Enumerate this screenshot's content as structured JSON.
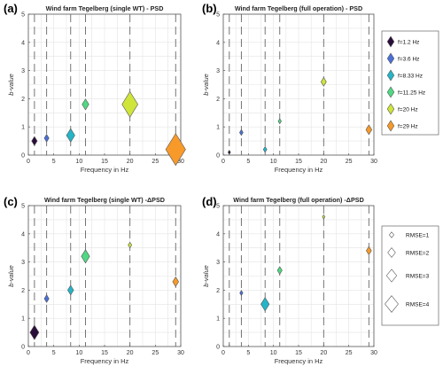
{
  "chart_data": [
    {
      "type": "scatter",
      "panel_label": "(a)",
      "title": "Wind farm Tegelberg (single WT) - PSD",
      "xlabel": "Frequency in Hz",
      "ylabel": "b-value",
      "xlim": [
        0,
        30
      ],
      "ylim": [
        0,
        5
      ],
      "xticks": [
        0,
        5,
        10,
        15,
        20,
        25,
        30
      ],
      "yticks": [
        0,
        1,
        2,
        3,
        4,
        5
      ],
      "grid": true,
      "marker": "diamond",
      "points": [
        {
          "x": 1.2,
          "y": 0.5,
          "size": 0.28,
          "color": "#2a0e3a"
        },
        {
          "x": 3.6,
          "y": 0.6,
          "size": 0.24,
          "color": "#4a6fd8"
        },
        {
          "x": 8.33,
          "y": 0.7,
          "size": 0.42,
          "color": "#24b5c8"
        },
        {
          "x": 11.25,
          "y": 1.8,
          "size": 0.34,
          "color": "#4fd982"
        },
        {
          "x": 20,
          "y": 1.8,
          "size": 0.8,
          "color": "#cfe53a"
        },
        {
          "x": 29,
          "y": 0.2,
          "size": 1.0,
          "color": "#f79a2a"
        }
      ]
    },
    {
      "type": "scatter",
      "panel_label": "(b)",
      "title": "Wind farm Tegelberg (full operation) - PSD",
      "xlabel": "Frequency in Hz",
      "ylabel": "b-value",
      "xlim": [
        0,
        30
      ],
      "ylim": [
        0,
        5
      ],
      "xticks": [
        0,
        5,
        10,
        15,
        20,
        25,
        30
      ],
      "yticks": [
        0,
        1,
        2,
        3,
        4,
        5
      ],
      "grid": true,
      "marker": "diamond",
      "points": [
        {
          "x": 1.2,
          "y": 0.1,
          "size": 0.13,
          "color": "#2a0e3a"
        },
        {
          "x": 3.6,
          "y": 0.8,
          "size": 0.18,
          "color": "#4a6fd8"
        },
        {
          "x": 8.33,
          "y": 0.2,
          "size": 0.18,
          "color": "#24b5c8"
        },
        {
          "x": 11.25,
          "y": 1.2,
          "size": 0.16,
          "color": "#4fd982"
        },
        {
          "x": 20,
          "y": 2.6,
          "size": 0.27,
          "color": "#cfe53a"
        },
        {
          "x": 29,
          "y": 0.9,
          "size": 0.3,
          "color": "#f79a2a"
        }
      ]
    },
    {
      "type": "scatter",
      "panel_label": "(c)",
      "title": "Wind farm Tegelberg (single WT) -ΔPSD",
      "xlabel": "Frequency in Hz",
      "ylabel": "b-value",
      "xlim": [
        0,
        30
      ],
      "ylim": [
        0,
        5
      ],
      "xticks": [
        0,
        5,
        10,
        15,
        20,
        25,
        30
      ],
      "yticks": [
        0,
        1,
        2,
        3,
        4,
        5
      ],
      "grid": true,
      "marker": "diamond",
      "points": [
        {
          "x": 1.2,
          "y": 0.5,
          "size": 0.45,
          "color": "#2a0e3a"
        },
        {
          "x": 3.6,
          "y": 1.7,
          "size": 0.24,
          "color": "#4a6fd8"
        },
        {
          "x": 8.33,
          "y": 2.0,
          "size": 0.3,
          "color": "#24b5c8"
        },
        {
          "x": 11.25,
          "y": 3.2,
          "size": 0.42,
          "color": "#4fd982"
        },
        {
          "x": 20,
          "y": 3.6,
          "size": 0.18,
          "color": "#cfe53a"
        },
        {
          "x": 29,
          "y": 2.3,
          "size": 0.3,
          "color": "#f79a2a"
        }
      ]
    },
    {
      "type": "scatter",
      "panel_label": "(d)",
      "title": "Wind farm Tegelberg (full operation) -ΔPSD",
      "xlabel": "Frequency in Hz",
      "ylabel": "b-value",
      "xlim": [
        0,
        30
      ],
      "ylim": [
        0,
        5
      ],
      "xticks": [
        0,
        5,
        10,
        15,
        20,
        25,
        30
      ],
      "yticks": [
        0,
        1,
        2,
        3,
        4,
        5
      ],
      "grid": true,
      "marker": "diamond",
      "points": [
        {
          "x": 1.2,
          "y": 0.05,
          "size": 0.03,
          "color": "#2a0e3a"
        },
        {
          "x": 3.6,
          "y": 1.9,
          "size": 0.16,
          "color": "#4a6fd8"
        },
        {
          "x": 8.33,
          "y": 1.5,
          "size": 0.42,
          "color": "#24b5c8"
        },
        {
          "x": 11.25,
          "y": 2.7,
          "size": 0.24,
          "color": "#4fd982"
        },
        {
          "x": 20,
          "y": 4.6,
          "size": 0.13,
          "color": "#cfe53a"
        },
        {
          "x": 29,
          "y": 3.4,
          "size": 0.26,
          "color": "#f79a2a"
        }
      ]
    }
  ],
  "legend_colors": [
    {
      "label": "f=1.2 Hz",
      "color": "#2a0e3a"
    },
    {
      "label": "f=3.6 Hz",
      "color": "#4a6fd8"
    },
    {
      "label": "f=8.33 Hz",
      "color": "#24b5c8"
    },
    {
      "label": "f=11.25 Hz",
      "color": "#4fd982"
    },
    {
      "label": "f=20 Hz",
      "color": "#cfe53a"
    },
    {
      "label": "f=29 Hz",
      "color": "#f79a2a"
    }
  ],
  "legend_sizes": [
    {
      "label": "RMSE=1",
      "size": 0.18
    },
    {
      "label": "RMSE=2",
      "size": 0.3
    },
    {
      "label": "RMSE=3",
      "size": 0.4
    },
    {
      "label": "RMSE=4",
      "size": 0.52
    }
  ]
}
